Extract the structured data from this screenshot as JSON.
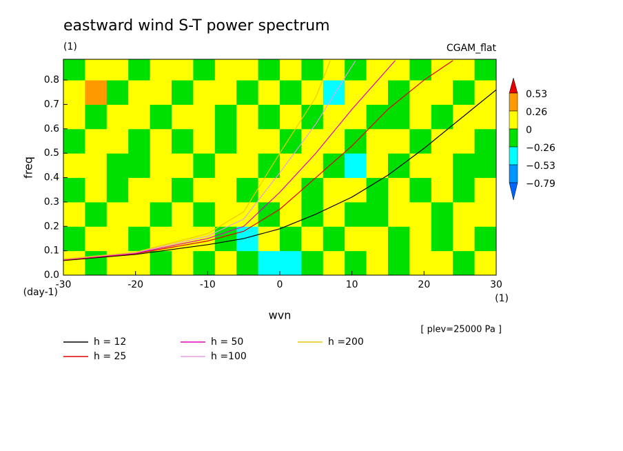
{
  "chart_data": {
    "type": "contour",
    "title": "eastward wind S-T power spectrum",
    "subtitle": "(1)",
    "model_label": "CGAM_flat",
    "x_label": "wvn",
    "x_unit": "(1)",
    "y_label": "freq",
    "y_unit": "(day-1)",
    "annotation": "[ plev=25000 Pa ]",
    "xlim": [
      -30,
      30
    ],
    "ylim": [
      0,
      0.885
    ],
    "xticks": [
      -30,
      -20,
      -10,
      0,
      10,
      20,
      30
    ],
    "yticks": [
      {
        "value": 0,
        "label": "0.0"
      },
      0.1,
      0.2,
      0.3,
      0.4,
      0.5,
      0.6,
      0.7,
      0.8
    ],
    "colorbar": {
      "levels": [
        {
          "value": -0.79,
          "label": "−0.79"
        },
        {
          "value": -0.53,
          "label": "−0.53"
        },
        {
          "value": -0.26,
          "label": "−0.26"
        },
        0,
        0.26,
        0.53
      ],
      "colors": [
        "#0064ff",
        "#0096ff",
        "#00ffff",
        "#00e000",
        "#ffff00",
        "#ff9900",
        "#e60000"
      ]
    },
    "field": {
      "x": [
        -28.5,
        -25.5,
        -22.5,
        -19.5,
        -16.5,
        -13.5,
        -10.5,
        -7.5,
        -4.5,
        -1.5,
        1.5,
        4.5,
        7.5,
        10.5,
        13.5,
        16.5,
        19.5,
        22.5,
        25.5,
        28.5
      ],
      "y": [
        0.05,
        0.15,
        0.25,
        0.35,
        0.45,
        0.55,
        0.65,
        0.75,
        0.85
      ],
      "z": [
        [
          0.1,
          -0.1,
          0.1,
          0.1,
          -0.1,
          0.1,
          -0.1,
          0.1,
          -0.1,
          -0.3,
          -0.5,
          -0.1,
          0.1,
          -0.1,
          0.1,
          -0.1,
          0.1,
          0.1,
          -0.1,
          0.1
        ],
        [
          -0.1,
          0.1,
          0.1,
          -0.1,
          0.1,
          0.1,
          0.1,
          -0.1,
          -0.3,
          0.1,
          -0.1,
          0.1,
          -0.1,
          0.1,
          0.1,
          -0.1,
          0.1,
          -0.1,
          0.1,
          -0.1
        ],
        [
          0.1,
          -0.1,
          0.1,
          0.1,
          -0.1,
          0.1,
          -0.1,
          0.1,
          0.1,
          -0.1,
          0.1,
          -0.1,
          0.1,
          -0.1,
          -0.1,
          0.1,
          0.1,
          -0.1,
          0.1,
          0.1
        ],
        [
          -0.1,
          0.1,
          -0.1,
          0.1,
          0.1,
          -0.1,
          0.1,
          0.1,
          -0.1,
          0.1,
          0.1,
          -0.1,
          0.1,
          0.1,
          -0.1,
          0.1,
          -0.1,
          0.1,
          -0.1,
          0.1
        ],
        [
          0.1,
          0.1,
          -0.1,
          -0.1,
          0.1,
          0.1,
          -0.1,
          0.1,
          0.1,
          -0.1,
          0.1,
          0.1,
          -0.1,
          -0.3,
          0.1,
          -0.1,
          0.1,
          0.1,
          -0.1,
          -0.1
        ],
        [
          -0.1,
          0.1,
          0.1,
          -0.1,
          0.1,
          -0.1,
          0.1,
          -0.1,
          0.1,
          0.1,
          -0.1,
          0.1,
          0.1,
          -0.1,
          0.1,
          0.1,
          -0.1,
          0.1,
          0.1,
          -0.1
        ],
        [
          0.1,
          -0.1,
          0.1,
          0.1,
          -0.1,
          0.1,
          0.1,
          -0.1,
          0.1,
          -0.1,
          0.1,
          -0.1,
          0.1,
          0.1,
          -0.1,
          -0.1,
          0.1,
          -0.1,
          0.1,
          0.1
        ],
        [
          0.1,
          0.3,
          -0.1,
          0.1,
          0.1,
          -0.1,
          0.1,
          0.1,
          -0.1,
          0.1,
          -0.1,
          0.1,
          -0.3,
          0.1,
          0.1,
          -0.1,
          0.1,
          0.1,
          -0.1,
          0.1
        ],
        [
          -0.1,
          0.1,
          0.1,
          -0.1,
          0.1,
          0.1,
          -0.1,
          0.1,
          0.1,
          -0.1,
          0.1,
          -0.1,
          0.1,
          -0.1,
          0.1,
          0.1,
          -0.1,
          0.1,
          0.1,
          -0.1
        ]
      ]
    },
    "series": [
      {
        "name": "h = 12",
        "color": "#000000",
        "x": [
          -30,
          -20,
          -10,
          -5,
          0,
          5,
          10,
          15,
          20,
          25,
          30
        ],
        "values": [
          0.06,
          0.085,
          0.125,
          0.15,
          0.19,
          0.25,
          0.32,
          0.41,
          0.52,
          0.64,
          0.76
        ]
      },
      {
        "name": "h = 25",
        "color": "#e00000",
        "x": [
          -30,
          -20,
          -10,
          -5,
          0,
          5,
          10,
          15,
          20,
          24
        ],
        "values": [
          0.062,
          0.088,
          0.14,
          0.18,
          0.27,
          0.4,
          0.53,
          0.68,
          0.8,
          0.88
        ]
      },
      {
        "name": "h = 50",
        "color": "#e000c0",
        "x": [
          -30,
          -20,
          -10,
          -5,
          0,
          5,
          10,
          16
        ],
        "values": [
          0.064,
          0.09,
          0.15,
          0.2,
          0.34,
          0.5,
          0.68,
          0.88
        ]
      },
      {
        "name": "h =100",
        "color": "#e0a0e0",
        "x": [
          -30,
          -20,
          -10,
          -5,
          0,
          5,
          10.5
        ],
        "values": [
          0.065,
          0.092,
          0.16,
          0.23,
          0.42,
          0.62,
          0.88
        ]
      },
      {
        "name": "h =200",
        "color": "#f0c800",
        "x": [
          -30,
          -20,
          -10,
          -5,
          0,
          5,
          7
        ],
        "values": [
          0.066,
          0.094,
          0.17,
          0.26,
          0.5,
          0.73,
          0.88
        ]
      }
    ]
  }
}
